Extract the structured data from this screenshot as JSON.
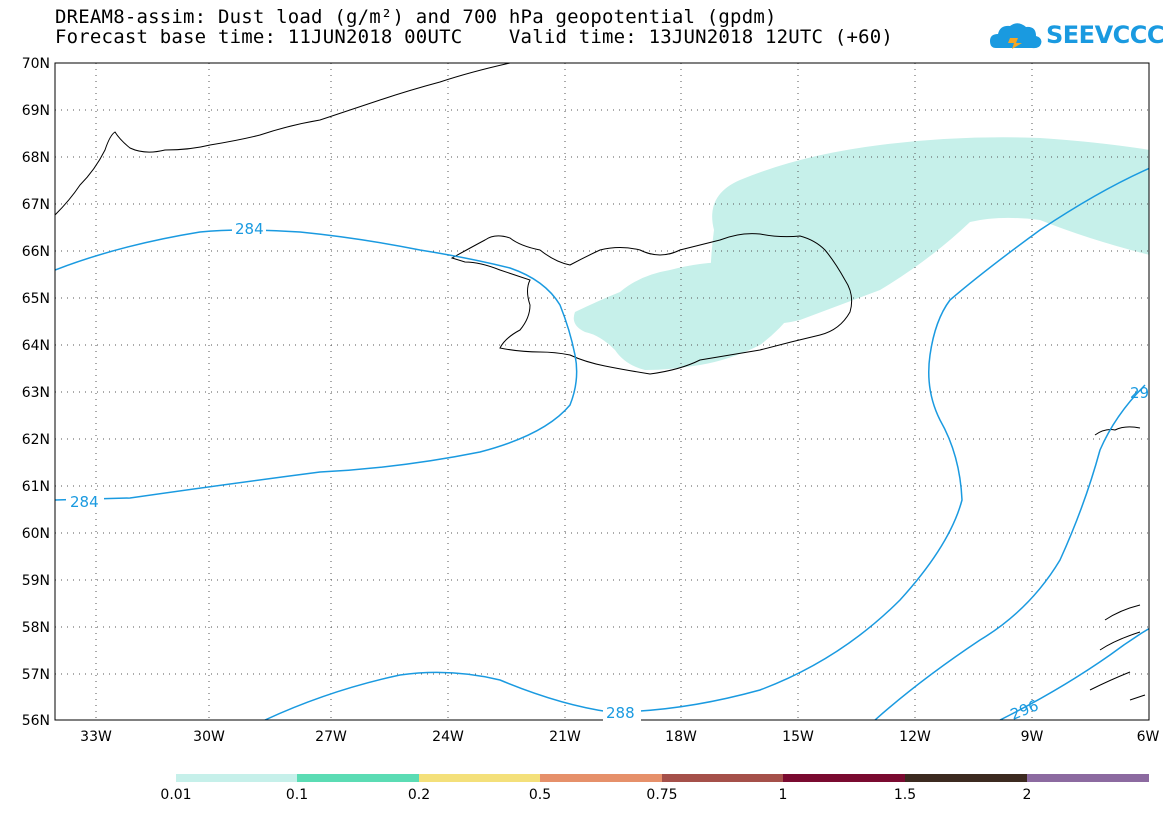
{
  "title": {
    "line1": "DREAM8-assim: Dust load (g/m²) and 700 hPa geopotential (gpdm)",
    "line2": "Forecast base time: 11JUN2018 00UTC    Valid time: 13JUN2018 12UTC (+60)"
  },
  "logo": {
    "text": "SEEVCCC",
    "color": "#1a9ae0"
  },
  "map": {
    "lat_labels": [
      "70N",
      "69N",
      "68N",
      "67N",
      "66N",
      "65N",
      "64N",
      "63N",
      "62N",
      "61N",
      "60N",
      "59N",
      "58N",
      "57N",
      "56N"
    ],
    "lon_labels": [
      "33W",
      "30W",
      "27W",
      "24W",
      "21W",
      "18W",
      "15W",
      "12W",
      "9W",
      "6W"
    ],
    "lat_range": [
      56,
      70
    ],
    "lon_range": [
      -34.5,
      -6
    ],
    "contour_color": "#1a9ae0",
    "contour_labels": [
      "284",
      "284",
      "288",
      "296",
      "29"
    ]
  },
  "colorbar": {
    "labels": [
      "0.01",
      "0.1",
      "0.2",
      "0.5",
      "0.75",
      "1",
      "1.5",
      "2"
    ],
    "colors": [
      "#c6f0ea",
      "#5bdcb4",
      "#f4e07a",
      "#e6906a",
      "#a5504a",
      "#7a0a30",
      "#3c2a20",
      "#8c6aa0"
    ]
  }
}
